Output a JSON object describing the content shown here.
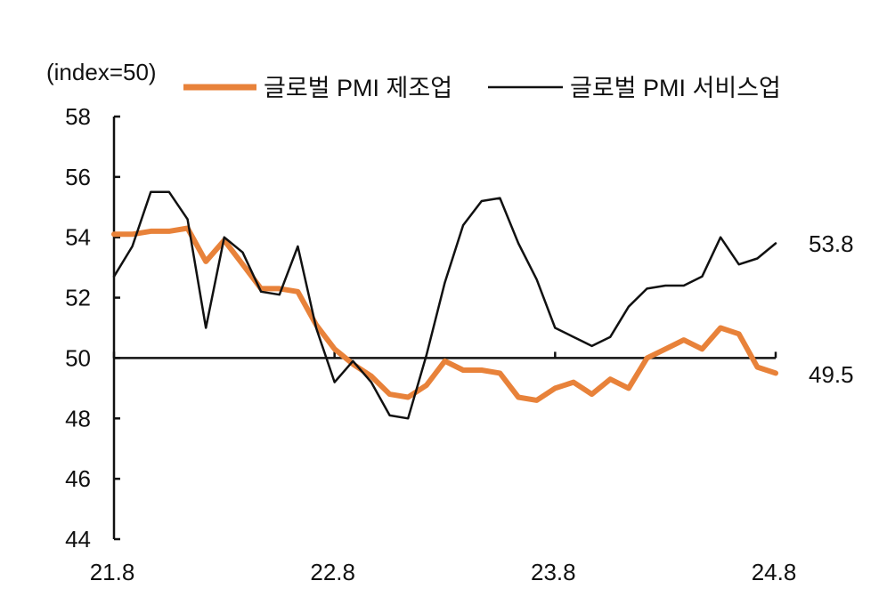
{
  "chart_data": {
    "type": "line",
    "unit_label": "(index=50)",
    "ylim": [
      44,
      58
    ],
    "y_ticks": [
      "58",
      "56",
      "54",
      "52",
      "50",
      "48",
      "46",
      "44"
    ],
    "x_tick_labels": [
      "21.8",
      "22.8",
      "23.8",
      "24.8"
    ],
    "reference_line": 50,
    "legend_position": "top",
    "series": [
      {
        "name": "글로벌 PMI 제조업",
        "color": "#e8823a",
        "end_label": "49.5",
        "values": [
          54.1,
          54.1,
          54.2,
          54.2,
          54.3,
          53.2,
          53.9,
          53.1,
          52.3,
          52.3,
          52.2,
          51.1,
          50.3,
          49.8,
          49.4,
          48.8,
          48.7,
          49.1,
          49.9,
          49.6,
          49.6,
          49.5,
          48.7,
          48.6,
          49.0,
          49.2,
          48.8,
          49.3,
          49.0,
          50.0,
          50.3,
          50.6,
          50.3,
          51.0,
          50.8,
          49.7,
          49.5
        ]
      },
      {
        "name": "글로벌 PMI 서비스업",
        "color": "#111111",
        "end_label": "53.8",
        "values": [
          52.7,
          53.7,
          55.5,
          55.5,
          54.6,
          51.0,
          54.0,
          53.5,
          52.2,
          52.1,
          53.7,
          51.0,
          49.2,
          49.9,
          49.2,
          48.1,
          48.0,
          50.1,
          52.5,
          54.4,
          55.2,
          55.3,
          53.8,
          52.6,
          51.0,
          50.7,
          50.4,
          50.7,
          51.7,
          52.3,
          52.4,
          52.4,
          52.7,
          54.0,
          53.1,
          53.3,
          53.8
        ]
      }
    ]
  }
}
